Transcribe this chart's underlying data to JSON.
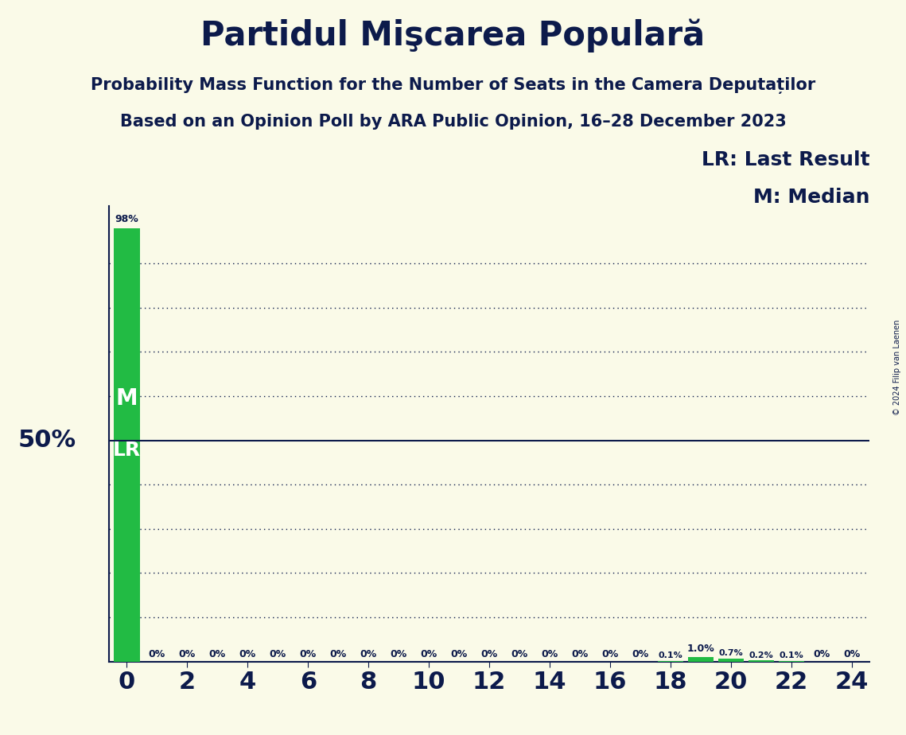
{
  "title": "Partidul Mişcarea Populară",
  "subtitle1": "Probability Mass Function for the Number of Seats in the Camera Deputaților",
  "subtitle2": "Based on an Opinion Poll by ARA Public Opinion, 16–28 December 2023",
  "copyright": "© 2024 Filip van Laenen",
  "legend_lr": "LR: Last Result",
  "legend_m": "M: Median",
  "bar_color": "#22BB44",
  "background_color": "#FAFAE8",
  "text_color": "#0C1A4B",
  "x_values": [
    0,
    1,
    2,
    3,
    4,
    5,
    6,
    7,
    8,
    9,
    10,
    11,
    12,
    13,
    14,
    15,
    16,
    17,
    18,
    19,
    20,
    21,
    22,
    23,
    24
  ],
  "y_values": [
    98.0,
    0.0,
    0.0,
    0.0,
    0.0,
    0.0,
    0.0,
    0.0,
    0.0,
    0.0,
    0.0,
    0.0,
    0.0,
    0.0,
    0.0,
    0.0,
    0.0,
    0.0,
    0.1,
    1.0,
    0.7,
    0.2,
    0.1,
    0.0,
    0.0
  ],
  "bar_labels": [
    "98%",
    "0%",
    "0%",
    "0%",
    "0%",
    "0%",
    "0%",
    "0%",
    "0%",
    "0%",
    "0%",
    "0%",
    "0%",
    "0%",
    "0%",
    "0%",
    "0%",
    "0%",
    "0.1%",
    "1.0%",
    "0.7%",
    "0.2%",
    "0.1%",
    "0%",
    "0%"
  ],
  "median": 0,
  "last_result": 0,
  "fifty_pct_line": 50,
  "dotted_lines": [
    10,
    20,
    30,
    40,
    60,
    70,
    80,
    90
  ],
  "title_fontsize": 30,
  "subtitle_fontsize": 15,
  "label_fontsize": 9,
  "xtick_fontsize": 22,
  "ylabel_fontsize": 22,
  "legend_fontsize": 18,
  "marker_fontsize": 20
}
